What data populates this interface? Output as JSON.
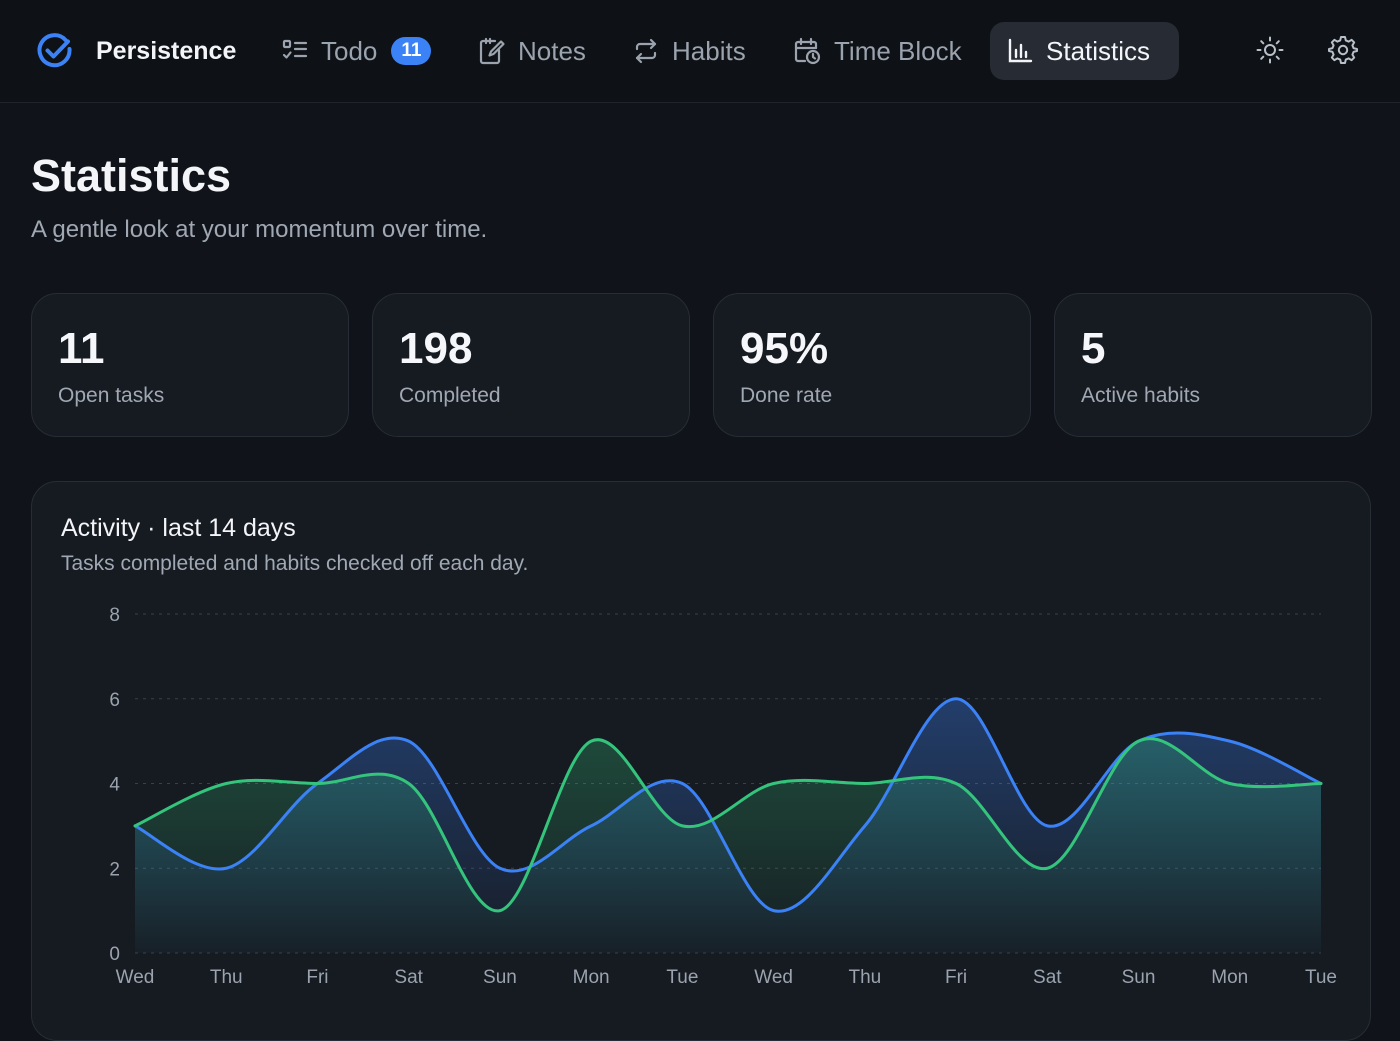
{
  "nav": {
    "brand": "Persistence",
    "items": [
      {
        "key": "todo",
        "label": "Todo",
        "badge": "11",
        "icon": "checklist-icon"
      },
      {
        "key": "notes",
        "label": "Notes",
        "icon": "edit-note-icon"
      },
      {
        "key": "habits",
        "label": "Habits",
        "icon": "repeat-arrows-icon"
      },
      {
        "key": "timeblock",
        "label": "Time Block",
        "icon": "calendar-clock-icon"
      },
      {
        "key": "statistics",
        "label": "Statistics",
        "icon": "bar-chart-icon",
        "active": true
      }
    ],
    "actions": [
      "sun-icon",
      "gear-icon"
    ]
  },
  "page": {
    "title": "Statistics",
    "subtitle": "A gentle look at your momentum over time."
  },
  "stats": [
    {
      "value": "11",
      "label": "Open tasks"
    },
    {
      "value": "198",
      "label": "Completed"
    },
    {
      "value": "95%",
      "label": "Done rate"
    },
    {
      "value": "5",
      "label": "Active habits"
    }
  ],
  "activity": {
    "title": "Activity · last 14 days",
    "subtitle": "Tasks completed and habits checked off each day."
  },
  "colors": {
    "accent": "#3b82f6",
    "tasks_line": "#3b82f6",
    "habits_line": "#34c47c",
    "background": "#101319",
    "card": "#161a21"
  },
  "chart_data": {
    "type": "area",
    "categories": [
      "Wed",
      "Thu",
      "Fri",
      "Sat",
      "Sun",
      "Mon",
      "Tue",
      "Wed",
      "Thu",
      "Fri",
      "Sat",
      "Sun",
      "Mon",
      "Tue"
    ],
    "series": [
      {
        "values": [
          3,
          2,
          4,
          5,
          2,
          3,
          4,
          1,
          3,
          6,
          3,
          5,
          5,
          4
        ],
        "color": "#3b82f6"
      },
      {
        "values": [
          3,
          4,
          4,
          4,
          1,
          5,
          3,
          4,
          4,
          4,
          2,
          5,
          4,
          4
        ],
        "color": "#34c47c"
      }
    ],
    "ylim": [
      0,
      8
    ],
    "yticks": [
      0,
      2,
      4,
      6,
      8
    ],
    "grid": true,
    "xlabel": "",
    "ylabel": ""
  }
}
